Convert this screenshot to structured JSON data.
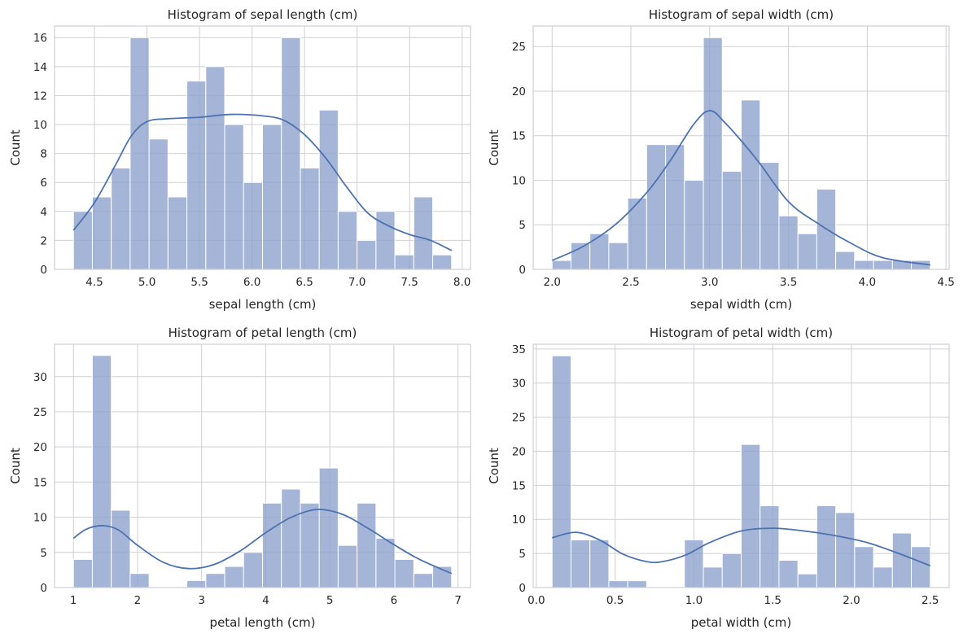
{
  "chart_data": [
    {
      "type": "bar",
      "title": "Histogram of sepal length (cm)",
      "xlabel": "sepal length (cm)",
      "ylabel": "Count",
      "grid": true,
      "xlim": [
        4.12,
        8.08
      ],
      "ylim": [
        0,
        16.8
      ],
      "xticks": [
        "4.5",
        "5.0",
        "5.5",
        "6.0",
        "6.5",
        "7.0",
        "7.5",
        "8.0"
      ],
      "yticks": [
        "0",
        "2",
        "4",
        "6",
        "8",
        "10",
        "12",
        "14",
        "16"
      ],
      "bin_start": 4.3,
      "bin_width": 0.18,
      "values": [
        4,
        5,
        7,
        16,
        9,
        5,
        13,
        14,
        10,
        6,
        10,
        16,
        7,
        11,
        4,
        2,
        4,
        1,
        5,
        1
      ],
      "kde": {
        "x": [
          4.3,
          4.5,
          4.7,
          4.85,
          5.0,
          5.2,
          5.5,
          5.8,
          6.1,
          6.3,
          6.5,
          6.7,
          6.9,
          7.1,
          7.3,
          7.5,
          7.7,
          7.9
        ],
        "y": [
          2.7,
          4.6,
          7.2,
          9.2,
          10.2,
          10.4,
          10.5,
          10.7,
          10.6,
          10.3,
          9.3,
          7.7,
          5.7,
          3.9,
          3.0,
          2.4,
          2.0,
          1.3
        ]
      }
    },
    {
      "type": "bar",
      "title": "Histogram of sepal width (cm)",
      "xlabel": "sepal width (cm)",
      "ylabel": "Count",
      "grid": true,
      "xlim": [
        1.88,
        4.52
      ],
      "ylim": [
        0,
        27.3
      ],
      "xticks": [
        "2.0",
        "2.5",
        "3.0",
        "3.5",
        "4.0",
        "4.5"
      ],
      "yticks": [
        "0",
        "5",
        "10",
        "15",
        "20",
        "25"
      ],
      "bin_start": 2.0,
      "bin_width": 0.12,
      "values": [
        1,
        3,
        4,
        3,
        8,
        14,
        14,
        10,
        26,
        11,
        19,
        12,
        6,
        4,
        9,
        2,
        1,
        1,
        1,
        1
      ],
      "kde": {
        "x": [
          2.0,
          2.2,
          2.4,
          2.6,
          2.75,
          2.9,
          3.0,
          3.1,
          3.3,
          3.5,
          3.7,
          3.9,
          4.1,
          4.4
        ],
        "y": [
          1.0,
          2.6,
          5.0,
          8.6,
          12.2,
          16.3,
          17.8,
          16.4,
          12.3,
          7.6,
          5.0,
          2.9,
          1.3,
          0.5
        ]
      }
    },
    {
      "type": "bar",
      "title": "Histogram of petal length (cm)",
      "xlabel": "petal length (cm)",
      "ylabel": "Count",
      "grid": true,
      "xlim": [
        0.705,
        7.195
      ],
      "ylim": [
        0,
        34.6
      ],
      "xticks": [
        "1",
        "2",
        "3",
        "4",
        "5",
        "6",
        "7"
      ],
      "yticks": [
        "0",
        "5",
        "10",
        "15",
        "20",
        "25",
        "30"
      ],
      "bin_start": 1.0,
      "bin_width": 0.295,
      "values": [
        4,
        33,
        11,
        2,
        0,
        0,
        1,
        2,
        3,
        5,
        12,
        14,
        12,
        17,
        6,
        12,
        7,
        4,
        2,
        3
      ],
      "kde": {
        "x": [
          1.0,
          1.2,
          1.45,
          1.7,
          2.0,
          2.4,
          2.8,
          3.2,
          3.6,
          4.0,
          4.4,
          4.8,
          5.2,
          5.6,
          6.0,
          6.4,
          6.9
        ],
        "y": [
          7.0,
          8.3,
          8.8,
          8.2,
          6.0,
          3.6,
          2.7,
          3.3,
          5.2,
          7.8,
          10.0,
          11.1,
          10.4,
          8.4,
          6.1,
          4.0,
          2.0
        ]
      }
    },
    {
      "type": "bar",
      "title": "Histogram of petal width (cm)",
      "xlabel": "petal width (cm)",
      "ylabel": "Count",
      "grid": true,
      "xlim": [
        -0.02,
        2.62
      ],
      "ylim": [
        0,
        35.7
      ],
      "xticks": [
        "0.0",
        "0.5",
        "1.0",
        "1.5",
        "2.0",
        "2.5"
      ],
      "yticks": [
        "0",
        "5",
        "10",
        "15",
        "20",
        "25",
        "30",
        "35"
      ],
      "bin_start": 0.1,
      "bin_width": 0.12,
      "values": [
        34,
        7,
        7,
        1,
        1,
        0,
        0,
        7,
        3,
        5,
        21,
        12,
        4,
        2,
        12,
        11,
        6,
        3,
        8,
        6
      ],
      "kde": {
        "x": [
          0.1,
          0.25,
          0.4,
          0.55,
          0.7,
          0.8,
          0.95,
          1.1,
          1.3,
          1.5,
          1.7,
          1.9,
          2.1,
          2.3,
          2.5
        ],
        "y": [
          7.3,
          8.1,
          7.0,
          4.9,
          3.8,
          3.8,
          4.8,
          6.6,
          8.3,
          8.7,
          8.3,
          7.6,
          6.6,
          5.0,
          3.2
        ]
      }
    }
  ]
}
